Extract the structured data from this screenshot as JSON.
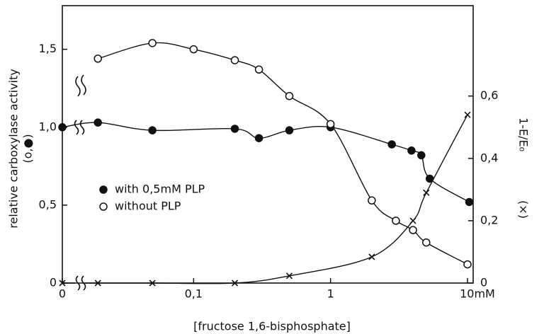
{
  "chart_data": {
    "type": "scatter",
    "xlabel": "[fructose 1,6-bisphosphate]",
    "ylabel": [
      "relative carboxylase activity",
      "(o,●)"
    ],
    "y2label": [
      "1-E/E₀",
      "(×)"
    ],
    "xscale": "log",
    "xlim": [
      0.011,
      11
    ],
    "xticks": [
      0,
      {
        "value": 0.1,
        "label": "0,1"
      },
      1,
      {
        "value": 10,
        "label": "10mM"
      }
    ],
    "ylim": [
      0,
      1.78
    ],
    "yticks": [
      0,
      {
        "value": 0.5,
        "label": "0,5"
      },
      {
        "value": 1,
        "label": "1,0"
      },
      {
        "value": 1.5,
        "label": "1,5"
      }
    ],
    "y2lim": [
      0,
      0.89
    ],
    "y2ticks": [
      0,
      {
        "value": 0.2,
        "label": "0,2"
      },
      {
        "value": 0.4,
        "label": "0,4"
      },
      {
        "value": 0.6,
        "label": "0,6"
      }
    ],
    "color": "#111111",
    "series": [
      {
        "name": "with 0,5mM PLP",
        "marker": "filled",
        "x": [
          0,
          0.02,
          0.05,
          0.2,
          0.3,
          0.5,
          1,
          2.8,
          3.9,
          4.6,
          5.3,
          10.3
        ],
        "values": [
          1.0,
          1.03,
          0.98,
          0.99,
          0.93,
          0.98,
          1.0,
          0.89,
          0.85,
          0.82,
          0.67,
          0.52
        ]
      },
      {
        "name": "without PLP",
        "marker": "open",
        "x": [
          0.02,
          0.05,
          0.1,
          0.2,
          0.3,
          0.5,
          1,
          2,
          3,
          4,
          5,
          10
        ],
        "values": [
          1.44,
          1.54,
          1.5,
          1.43,
          1.37,
          1.2,
          1.02,
          0.53,
          0.4,
          0.34,
          0.26,
          0.12
        ]
      },
      {
        "marker": "cross",
        "axis": "y2",
        "x": [
          0,
          0.02,
          0.05,
          0.2,
          0.5,
          2,
          4,
          5,
          10
        ],
        "values": [
          0,
          0,
          0,
          0,
          0.023,
          0.084,
          0.2,
          0.29,
          0.54
        ]
      }
    ]
  }
}
